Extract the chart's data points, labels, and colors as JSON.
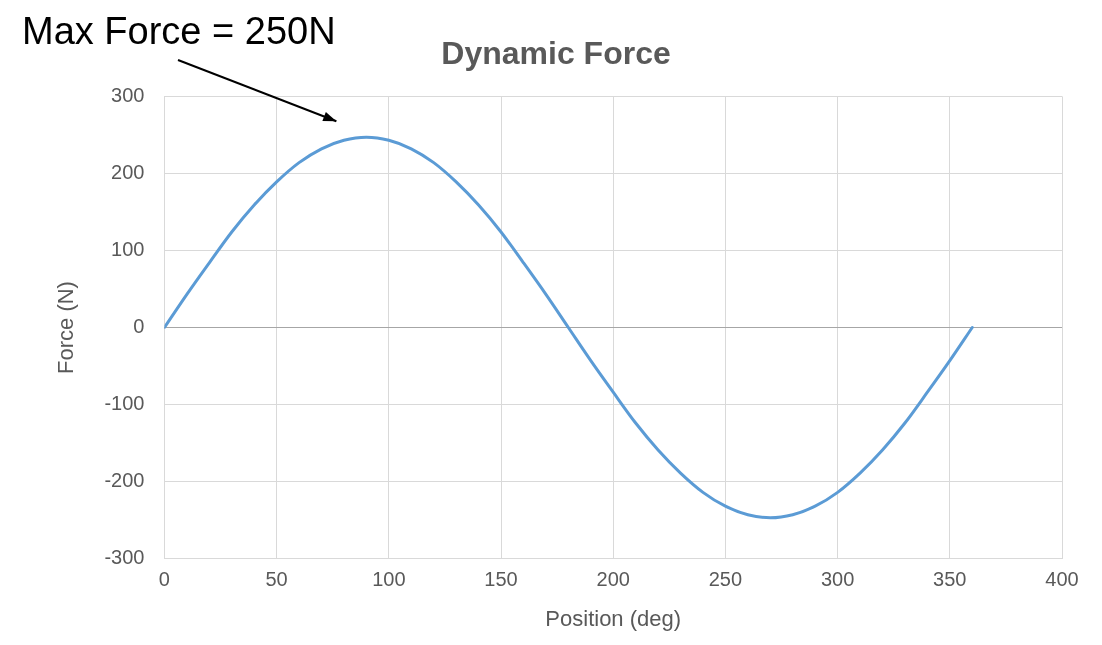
{
  "chart_data": {
    "type": "line",
    "title": "Dynamic Force",
    "xlabel": "Position (deg)",
    "ylabel": "Force (N)",
    "x": [
      0,
      10,
      20,
      30,
      40,
      50,
      60,
      70,
      80,
      90,
      100,
      110,
      120,
      130,
      140,
      150,
      160,
      170,
      180,
      190,
      200,
      210,
      220,
      230,
      240,
      250,
      260,
      270,
      280,
      290,
      300,
      310,
      320,
      330,
      340,
      350,
      360
    ],
    "series": [
      {
        "color": "#5b9bd5",
        "values": [
          0,
          43,
          84,
          124,
          159,
          189,
          214,
          232,
          243,
          247,
          243,
          232,
          214,
          189,
          159,
          124,
          84,
          43,
          0,
          -43,
          -84,
          -124,
          -159,
          -189,
          -214,
          -232,
          -243,
          -247,
          -243,
          -232,
          -214,
          -189,
          -159,
          -124,
          -84,
          -43,
          0
        ]
      }
    ],
    "xlim": [
      0,
      400
    ],
    "xticks": [
      0,
      50,
      100,
      150,
      200,
      250,
      300,
      350,
      400
    ],
    "ylim": [
      -300,
      300
    ],
    "yticks": [
      -300,
      -200,
      -100,
      0,
      100,
      200,
      300
    ],
    "grid": true,
    "legend": false,
    "marker": "none",
    "line_style": "solid",
    "annotations": [
      "Max Force = 250N"
    ]
  }
}
